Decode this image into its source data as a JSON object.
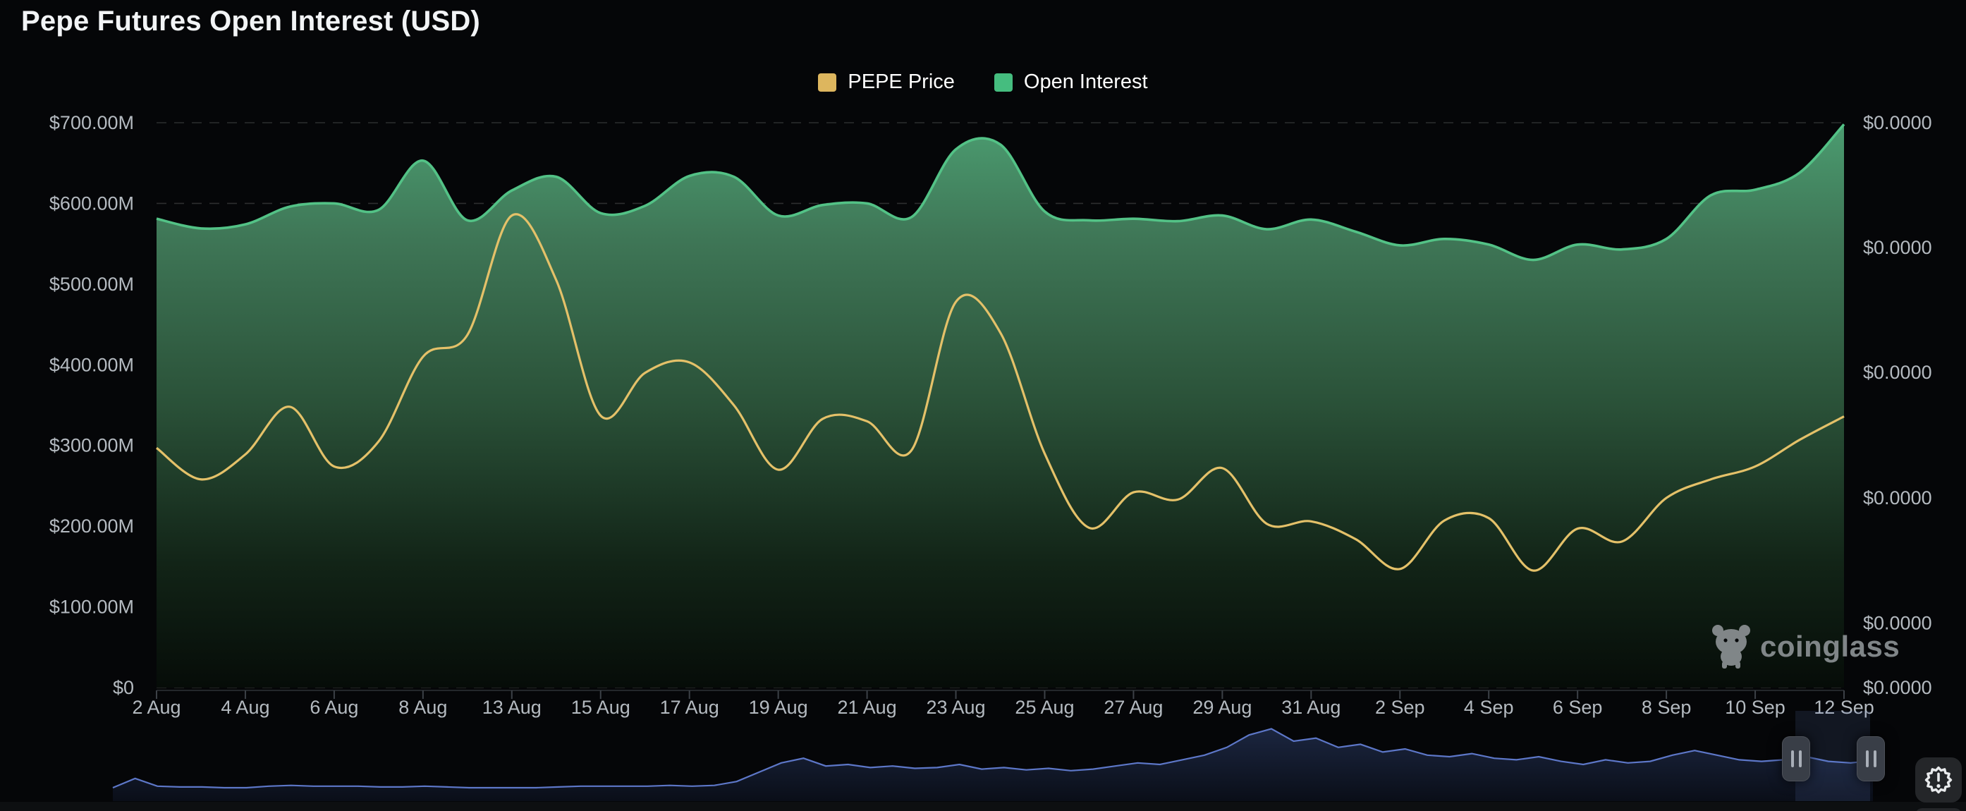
{
  "title": "Pepe Futures Open Interest (USD)",
  "legend": [
    {
      "label": "PEPE Price",
      "color": "#ddb65e"
    },
    {
      "label": "Open Interest",
      "color": "#45bd7f"
    }
  ],
  "watermark_text": "coinglass",
  "axes": {
    "left_labels": [
      "$700.00M",
      "$600.00M",
      "$500.00M",
      "$400.00M",
      "$300.00M",
      "$200.00M",
      "$100.00M",
      "$0"
    ],
    "right_labels": [
      "$0.0000",
      "$0.0000",
      "$0.0000",
      "$0.0000",
      "$0.0000",
      "$0.0000"
    ],
    "x_labels": [
      "2 Aug",
      "4 Aug",
      "6 Aug",
      "8 Aug",
      "13 Aug",
      "15 Aug",
      "17 Aug",
      "19 Aug",
      "21 Aug",
      "23 Aug",
      "25 Aug",
      "27 Aug",
      "29 Aug",
      "31 Aug",
      "2 Sep",
      "4 Sep",
      "6 Sep",
      "8 Sep",
      "10 Sep",
      "12 Sep"
    ]
  },
  "chart_data": {
    "type": "area",
    "title": "Pepe Futures Open Interest (USD)",
    "x_labels": [
      "2 Aug",
      "4 Aug",
      "6 Aug",
      "8 Aug",
      "13 Aug",
      "15 Aug",
      "17 Aug",
      "19 Aug",
      "21 Aug",
      "23 Aug",
      "25 Aug",
      "27 Aug",
      "29 Aug",
      "31 Aug",
      "2 Sep",
      "4 Sep",
      "6 Sep",
      "8 Sep",
      "10 Sep",
      "12 Sep"
    ],
    "note": "two data points per x tick; 39 points spanning 2 Aug - 12 Sep",
    "ylim_left_usd_millions": [
      0,
      700
    ],
    "grid": "dashed horizontal, 100M steps",
    "legend_position": "top center",
    "series": [
      {
        "name": "Open Interest",
        "style": "area",
        "color": "#53c286",
        "unit": "USD millions (left axis)",
        "values": [
          581,
          569,
          574,
          596,
          600,
          592,
          653,
          579,
          616,
          633,
          588,
          597,
          634,
          633,
          585,
          598,
          600,
          583,
          667,
          673,
          590,
          579,
          581,
          578,
          585,
          568,
          580,
          565,
          548,
          556,
          549,
          530,
          549,
          543,
          556,
          610,
          617,
          638,
          698
        ]
      },
      {
        "name": "PEPE Price",
        "style": "line",
        "color": "#e4c169",
        "unit": "plotted height in left-axis USD-million equivalents; right price axis labels all render as $0.0000",
        "values": [
          297,
          258,
          289,
          348,
          274,
          305,
          410,
          437,
          585,
          505,
          337,
          390,
          403,
          350,
          270,
          333,
          330,
          294,
          478,
          440,
          290,
          198,
          242,
          233,
          272,
          203,
          206,
          184,
          147,
          207,
          210,
          145,
          197,
          181,
          235,
          258,
          274,
          307,
          336
        ]
      }
    ]
  },
  "navigator": {
    "line_color": "#5d77c8",
    "values": [
      0.1,
      0.22,
      0.12,
      0.11,
      0.11,
      0.1,
      0.1,
      0.12,
      0.13,
      0.12,
      0.12,
      0.12,
      0.11,
      0.11,
      0.12,
      0.11,
      0.1,
      0.1,
      0.1,
      0.1,
      0.11,
      0.12,
      0.12,
      0.12,
      0.12,
      0.13,
      0.12,
      0.13,
      0.18,
      0.3,
      0.42,
      0.48,
      0.38,
      0.4,
      0.36,
      0.38,
      0.35,
      0.36,
      0.4,
      0.34,
      0.36,
      0.33,
      0.35,
      0.32,
      0.34,
      0.38,
      0.42,
      0.4,
      0.46,
      0.52,
      0.62,
      0.78,
      0.86,
      0.7,
      0.74,
      0.62,
      0.66,
      0.56,
      0.6,
      0.52,
      0.5,
      0.54,
      0.48,
      0.46,
      0.5,
      0.44,
      0.4,
      0.46,
      0.42,
      0.44,
      0.52,
      0.58,
      0.52,
      0.46,
      0.44,
      0.46,
      0.5,
      0.44,
      0.42,
      0.45
    ]
  }
}
